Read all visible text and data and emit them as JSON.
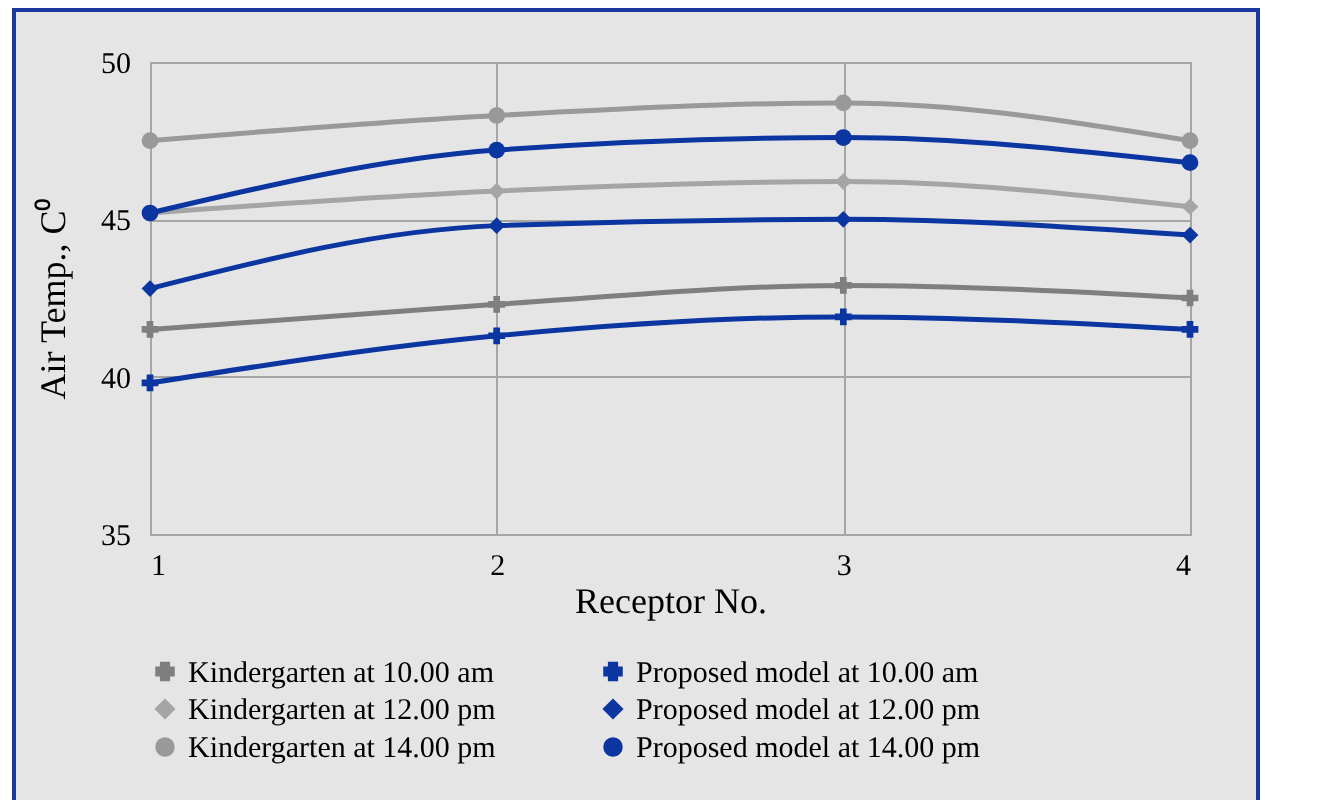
{
  "chart_data": {
    "type": "line",
    "xlabel": "Receptor No.",
    "ylabel": "Air Temp., C⁰",
    "x": [
      1,
      2,
      3,
      4
    ],
    "xlim": [
      1,
      4
    ],
    "xticks": [
      1,
      2,
      3,
      4
    ],
    "ylim": [
      35,
      50
    ],
    "yticks": [
      35,
      40,
      45,
      50
    ],
    "grid": true,
    "legend": "bottom",
    "series": [
      {
        "name": "Kindergarten at 10.00 am",
        "color": "#7f7f7f",
        "marker": "cross",
        "values": [
          41.5,
          42.3,
          42.9,
          42.5
        ]
      },
      {
        "name": "Proposed model at 10.00 am",
        "color": "#0b35a0",
        "marker": "cross",
        "values": [
          39.8,
          41.3,
          41.9,
          41.5
        ]
      },
      {
        "name": "Kindergarten at 12.00 pm",
        "color": "#a5a5a5",
        "marker": "diamond",
        "values": [
          45.2,
          45.9,
          46.2,
          45.4
        ]
      },
      {
        "name": "Proposed model at 12.00 pm",
        "color": "#0b35a0",
        "marker": "diamond",
        "values": [
          42.8,
          44.8,
          45.0,
          44.5
        ]
      },
      {
        "name": "Kindergarten at 14.00 pm",
        "color": "#999999",
        "marker": "circle",
        "values": [
          47.5,
          48.3,
          48.7,
          47.5
        ]
      },
      {
        "name": "Proposed model at 14.00 pm",
        "color": "#0b35a0",
        "marker": "circle",
        "values": [
          45.2,
          47.2,
          47.6,
          46.8
        ]
      }
    ]
  }
}
